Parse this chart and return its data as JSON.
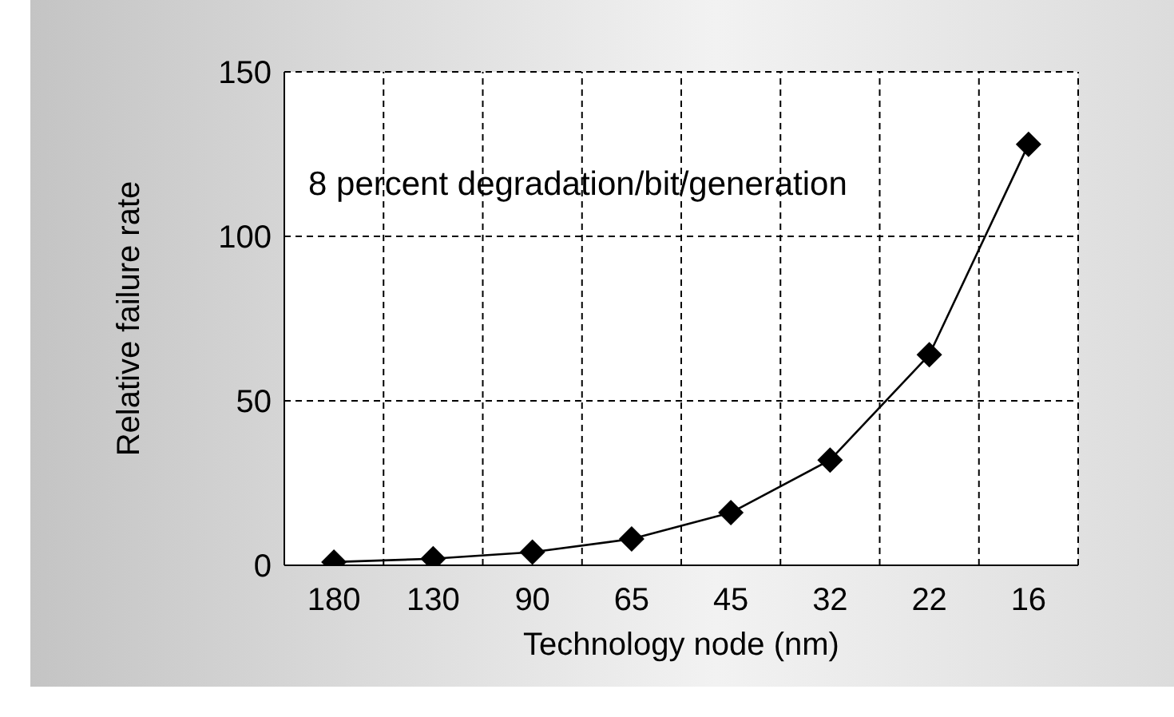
{
  "chart_data": {
    "type": "line",
    "xlabel": "Technology node (nm)",
    "ylabel": "Relative failure rate",
    "categories": [
      "180",
      "130",
      "90",
      "65",
      "45",
      "32",
      "22",
      "16"
    ],
    "series": [
      {
        "color": "#000000",
        "values": [
          1,
          2,
          4,
          8,
          16,
          32,
          64,
          128
        ]
      }
    ],
    "ylim": [
      0,
      150
    ],
    "yticks": [
      0,
      50,
      100,
      150
    ],
    "grid": true,
    "marker": "diamond",
    "line_style": "solid",
    "annotations": [
      "8 percent degradation/bit/generation"
    ]
  }
}
